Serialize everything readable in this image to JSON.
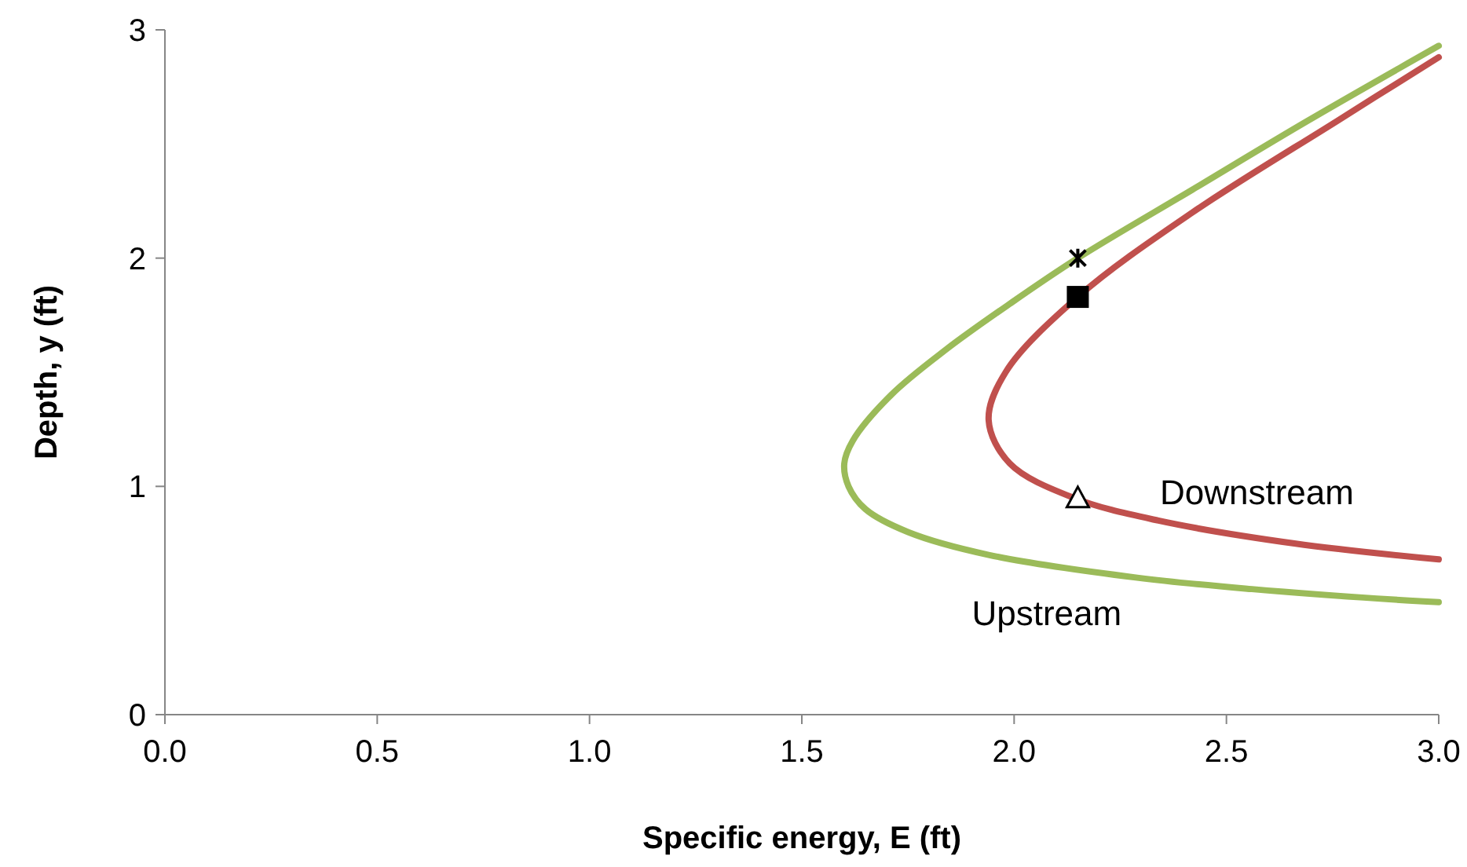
{
  "chart_data": {
    "type": "line",
    "xlabel": "Specific energy, E (ft)",
    "ylabel": "Depth, y (ft)",
    "xlim": [
      0,
      3
    ],
    "xticks": [
      {
        "value": 0,
        "label": "0.0"
      },
      {
        "value": 0.5,
        "label": "0.5"
      },
      {
        "value": 1,
        "label": "1.0"
      },
      {
        "value": 1.5,
        "label": "1.5"
      },
      {
        "value": 2,
        "label": "2.0"
      },
      {
        "value": 2.5,
        "label": "2.5"
      },
      {
        "value": 3,
        "label": "3.0"
      }
    ],
    "ylim": [
      0,
      3
    ],
    "yticks": [
      0,
      1,
      2,
      3
    ],
    "grid": false,
    "marker": "none",
    "line_style": "solid",
    "series": [
      {
        "name": "Upstream",
        "color": "#9bbb59",
        "x": [
          3.0,
          2.93,
          2.56,
          2.29,
          1.94,
          1.75,
          1.65,
          1.61,
          1.6,
          1.62,
          1.71,
          1.84,
          1.99,
          2.15,
          2.42,
          2.69,
          3.0
        ],
        "values": [
          0.493,
          0.5,
          0.55,
          0.6,
          0.7,
          0.8,
          0.9,
          1.0,
          1.1,
          1.2,
          1.4,
          1.6,
          1.8,
          2.0,
          2.3,
          2.6,
          2.93
        ]
      },
      {
        "name": "Downstream",
        "color": "#c0504d",
        "x": [
          3.0,
          2.66,
          2.34,
          2.14,
          1.99,
          1.94,
          1.98,
          2.15,
          2.42,
          2.76,
          3.0
        ],
        "values": [
          0.68,
          0.75,
          0.85,
          0.95,
          1.1,
          1.29,
          1.5,
          1.83,
          2.2,
          2.6,
          2.88
        ]
      },
      {
        "type": "scatter",
        "marker": "cross",
        "color": "#000000",
        "x": [
          2.15
        ],
        "values": [
          2.0
        ]
      },
      {
        "type": "scatter",
        "marker": "square",
        "color": "#000000",
        "x": [
          2.15
        ],
        "values": [
          1.83
        ]
      },
      {
        "type": "scatter",
        "marker": "triangle",
        "color": "#000000",
        "x": [
          2.15
        ],
        "values": [
          0.95
        ]
      }
    ]
  }
}
